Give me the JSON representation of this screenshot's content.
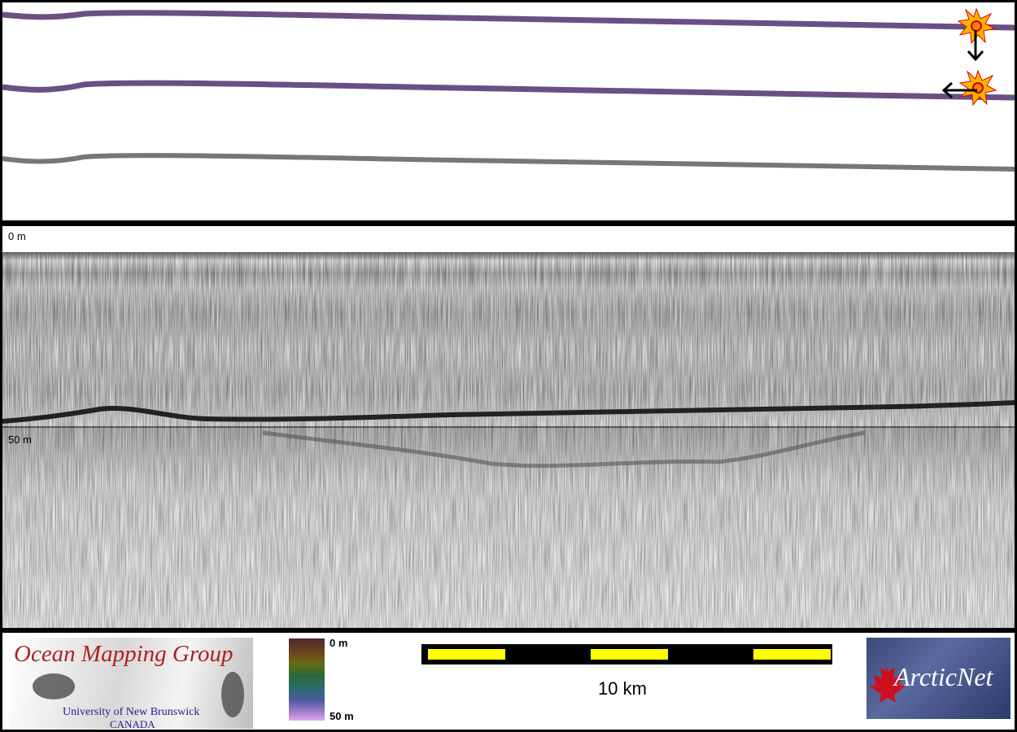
{
  "profile": {
    "depth_top_label": "0 m",
    "depth_50_label": "50 m"
  },
  "footer": {
    "logo_omg": {
      "title": "Ocean Mapping Group",
      "line1": "University of New Brunswick",
      "line2": "CANADA"
    },
    "colorbar": {
      "top_label": "0 m",
      "bottom_label": "50 m"
    },
    "scale": {
      "label": "10 km"
    },
    "logo_arcticnet": {
      "text": "ArcticNet"
    }
  }
}
